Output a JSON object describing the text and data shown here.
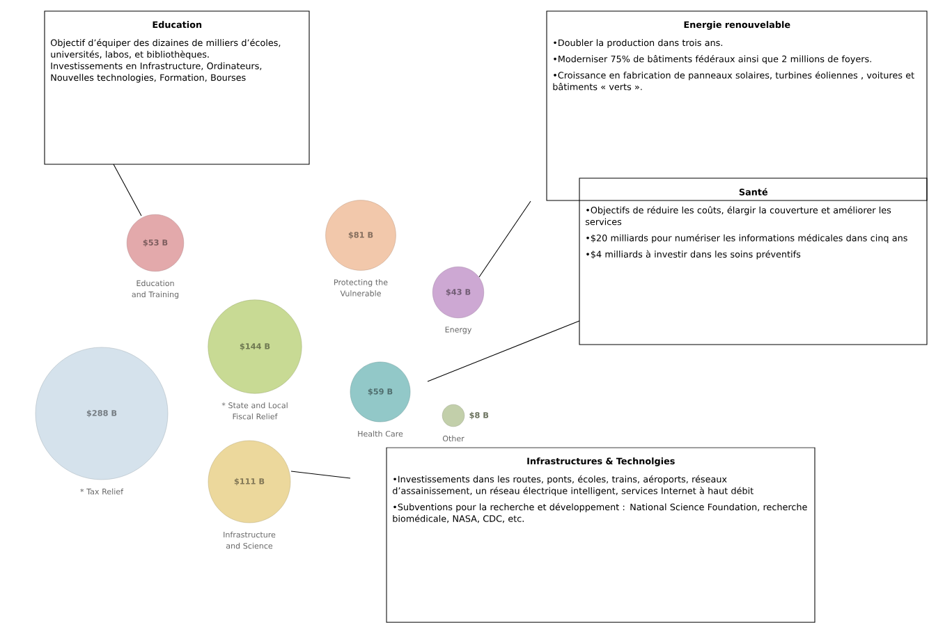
{
  "chart_data": {
    "type": "other",
    "categories": [
      "Education and Training",
      "Protecting the Vulnerable",
      "Energy",
      "* State and Local Fiscal Relief",
      "Health Care",
      "Other",
      "* Tax Relief",
      "Infrastructure and Science"
    ],
    "values": [
      53,
      81,
      43,
      144,
      59,
      8,
      288,
      111
    ],
    "value_labels": [
      "$53 B",
      "$81 B",
      "$43 B",
      "$144 B",
      "$59 B",
      "$8 B",
      "$288 B",
      "$111 B"
    ],
    "colors": [
      "#e3a9ab",
      "#f2c8ab",
      "#cda8d3",
      "#c8da94",
      "#92c8c8",
      "#c2cfaa",
      "#d5e2ec",
      "#ecd89c"
    ],
    "annotations": [
      "Education",
      "Objectif d’équiper des dizaines de milliers d’écoles, universités, labos, et bibliothèques.",
      "Investissements en Infrastructure, Ordinateurs, Nouvelles technologies, Formation, Bourses",
      "Energie renouvelable",
      "•Doubler la production dans trois ans.",
      "•Moderniser 75% de bâtiments fédéraux ainsi que 2 millions de foyers.",
      "•Croissance en fabrication de panneaux solaires, turbines éoliennes , voitures et bâtiments « verts ».",
      "Santé",
      "•Objectifs de réduire les coûts, élargir la couverture et améliorer les services",
      "•$20 milliards pour numériser les informations médicales dans cinq ans",
      "•$4 milliards à investir dans les soins préventifs",
      "Infrastructures & Technolgies",
      "•Investissements dans les routes, ponts, écoles, trains, aéroports, réseaux d’assainissement, un réseau électrique intelligent, services Internet à haut débit",
      "•Subventions pour la recherche et développement : National Science Foundation, recherche biomédicale, NASA, CDC, etc."
    ]
  }
}
